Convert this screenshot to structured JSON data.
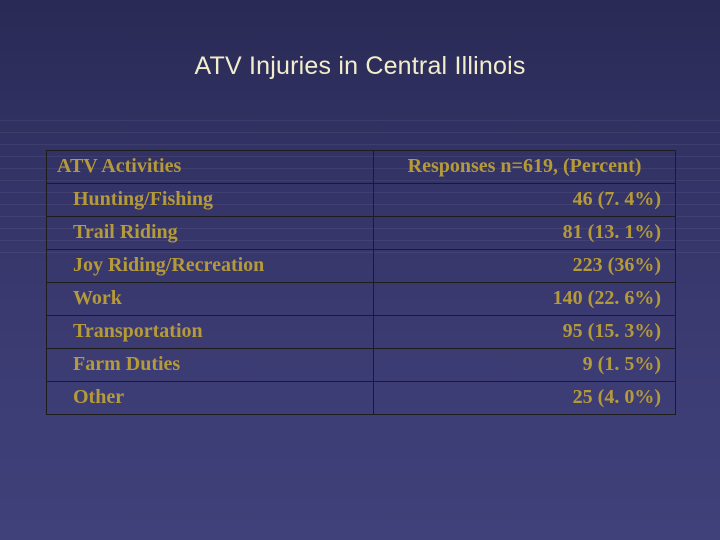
{
  "slide": {
    "title": "ATV Injuries in Central Illinois",
    "background_gradient": [
      "#2a2a55",
      "#40407a"
    ],
    "title_color": "#f2eecb",
    "title_fontsize_pt": 19,
    "title_font": "Arial"
  },
  "table": {
    "type": "table",
    "border_color": "#1d1d1d",
    "text_color": "#b59a3a",
    "header_fontsize_pt": 15,
    "cell_fontsize_pt": 15,
    "font_family": "Times New Roman",
    "font_weight": "bold",
    "columns": [
      {
        "label": "ATV Activities",
        "align": "left",
        "width_pct": 52
      },
      {
        "label": "Responses n=619, (Percent)",
        "align": "center",
        "width_pct": 48
      }
    ],
    "rows": [
      {
        "activity": "Hunting/Fishing",
        "response": "46 (7. 4%)"
      },
      {
        "activity": "Trail Riding",
        "response": "81 (13. 1%)"
      },
      {
        "activity": "Joy Riding/Recreation",
        "response": "223 (36%)"
      },
      {
        "activity": "Work",
        "response": "140 (22. 6%)"
      },
      {
        "activity": "Transportation",
        "response": "95 (15. 3%)"
      },
      {
        "activity": "Farm Duties",
        "response": "9 (1. 5%)"
      },
      {
        "activity": "Other",
        "response": "25 (4. 0%)"
      }
    ]
  }
}
